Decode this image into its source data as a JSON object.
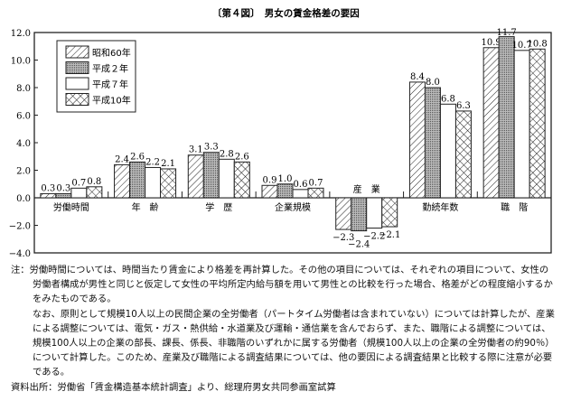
{
  "chart_data": {
    "type": "bar",
    "title": "〔第４図〕　男女の賃金格差の要因",
    "categories": [
      "労働時間",
      "年　齢",
      "学　歴",
      "企業規模",
      "産　業",
      "勤続年数",
      "職　階"
    ],
    "series": [
      {
        "name": "昭和60年",
        "pattern": "diagonal-hatch",
        "values": [
          0.3,
          2.4,
          3.1,
          0.9,
          -2.3,
          8.4,
          10.9
        ]
      },
      {
        "name": "平成２年",
        "pattern": "dotted-gray",
        "values": [
          0.3,
          2.6,
          3.3,
          1.0,
          -2.4,
          8.0,
          11.7
        ]
      },
      {
        "name": "平成７年",
        "pattern": "white",
        "values": [
          0.7,
          2.2,
          2.8,
          0.6,
          -2.2,
          6.8,
          10.7
        ]
      },
      {
        "name": "平成10年",
        "pattern": "cross-hatch",
        "values": [
          0.8,
          2.1,
          2.6,
          0.7,
          -2.1,
          6.3,
          10.8
        ]
      }
    ],
    "ylim": [
      -4,
      12
    ],
    "yticks": [
      "12.0",
      "10.0",
      "8.0",
      "6.0",
      "4.0",
      "2.0",
      "0.0",
      "−2.0",
      "−4.0"
    ],
    "legend_position": "top-left",
    "grid": false
  },
  "notes": {
    "note1": "注：労働時間については、時間当たり賃金により格差を再計算した。その他の項目については、それぞれの項目について、女性の労働者構成が男性と同じと仮定して女性の平均所定内給与額を用いて男性との比較を行った場合、格差がどの程度縮小するかをみたものである。",
    "note2": "なお、原則として規模10人以上の民間企業の全労働者（パートタイム労働者は含まれていない）については計算したが、産業による調整については、電気・ガス・熱供給・水道業及び運輸・通信業を含んでおらず、また、職階による調整については、規模100人以上の企業の部長、課長、係長、非職階のいずれかに属する労働者（規模100人以上の企業の全労働者の約90％）について計算した。このため、産業及び職階による調査結果については、他の要因による調査結果と比較する際に注意が必要である。",
    "source": "資料出所：労働省「賃金構造基本統計調査」より、総理府男女共同参画室試算"
  }
}
